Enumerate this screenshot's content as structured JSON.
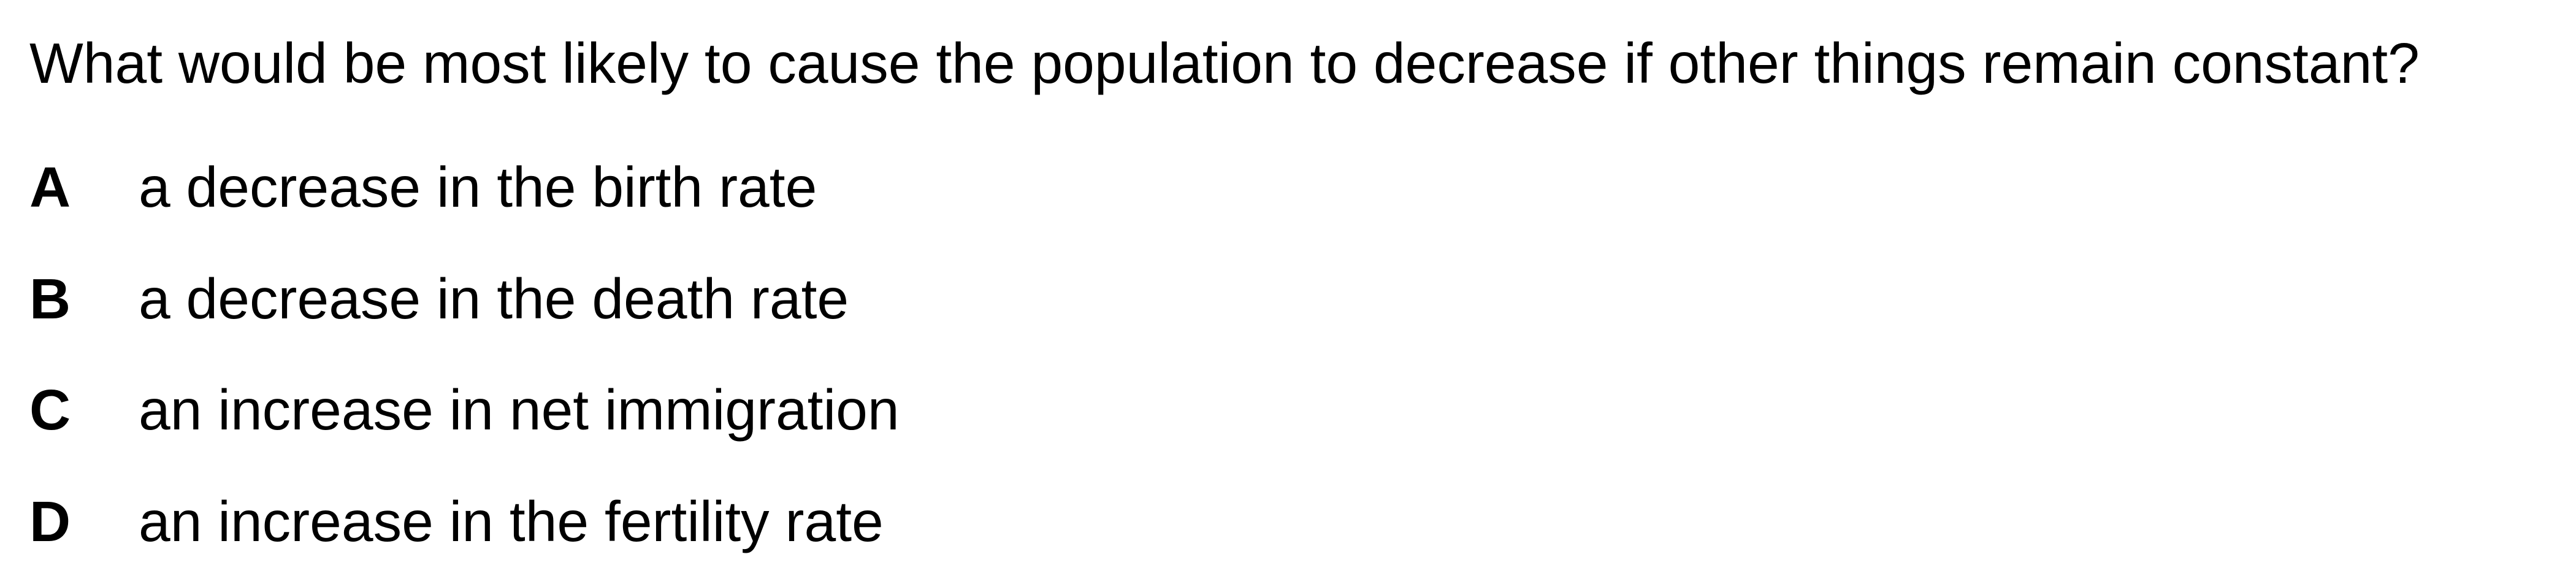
{
  "question": "What would be most likely to cause the population to decrease if other things remain constant?",
  "options": [
    {
      "letter": "A",
      "text": "a decrease in the birth rate"
    },
    {
      "letter": "B",
      "text": "a decrease in the death rate"
    },
    {
      "letter": "C",
      "text": "an increase in net immigration"
    },
    {
      "letter": "D",
      "text": "an increase in the fertility rate"
    }
  ]
}
